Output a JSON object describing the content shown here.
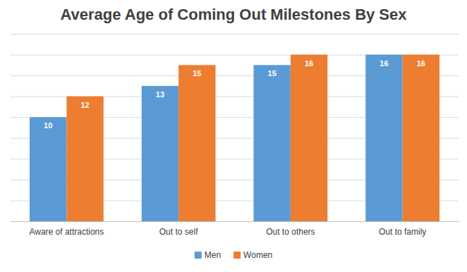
{
  "chart_data": {
    "type": "bar",
    "title": "Average Age of Coming Out Milestones By Sex",
    "categories": [
      "Aware of attractions",
      "Out to self",
      "Out to others",
      "Out to family"
    ],
    "series": [
      {
        "name": "Men",
        "color": "#5b9bd5",
        "values": [
          10,
          13,
          15,
          16
        ]
      },
      {
        "name": "Women",
        "color": "#ed7d31",
        "values": [
          12,
          15,
          16,
          16
        ]
      }
    ],
    "ylim": [
      0,
      18
    ],
    "yticks": [
      0,
      2,
      4,
      6,
      8,
      10,
      12,
      14,
      16,
      18
    ],
    "grid": true,
    "tick_labels": "x",
    "data_labels": true,
    "legend": "bottom"
  }
}
